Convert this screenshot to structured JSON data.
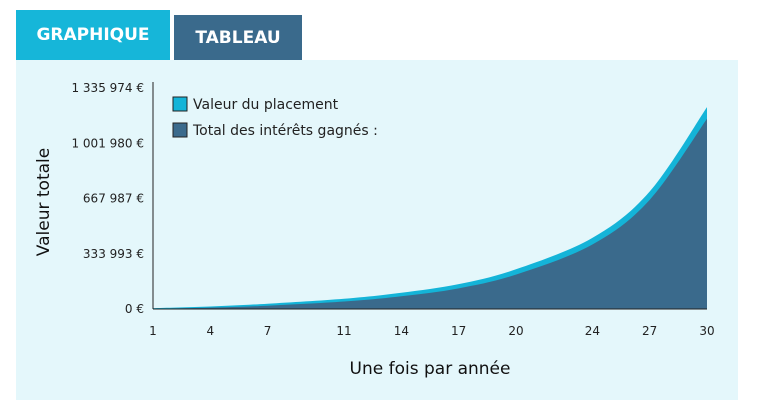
{
  "tabs": [
    {
      "label": "GRAPHIQUE",
      "active": true
    },
    {
      "label": "TABLEAU",
      "active": false
    }
  ],
  "colors": {
    "tab_active": "#16b6d9",
    "tab_inactive": "#3a6a8c",
    "panel_bg": "#e4f7fb",
    "series_value": "#14b4d8",
    "series_interest": "#3a6a8c"
  },
  "chart_data": {
    "type": "area",
    "title": "",
    "xlabel": "Une fois par année",
    "ylabel": "Valeur totale",
    "x_ticks": [
      "1",
      "4",
      "7",
      "11",
      "14",
      "17",
      "20",
      "24",
      "27",
      "30"
    ],
    "y_ticks": [
      "0 €",
      "333 993 €",
      "667 987 €",
      "1 001 980 €",
      "1 335 974 €"
    ],
    "y_tick_values": [
      0,
      333993,
      667987,
      1001980,
      1335974
    ],
    "xlim": [
      1,
      30
    ],
    "ylim": [
      0,
      1335974
    ],
    "legend_position": "top-left",
    "x": [
      1,
      4,
      7,
      11,
      14,
      17,
      20,
      24,
      27,
      30
    ],
    "series": [
      {
        "name": "Valeur du placement",
        "values": [
          5000,
          15000,
          32000,
          62000,
          98000,
          150000,
          240000,
          430000,
          710000,
          1220000
        ]
      },
      {
        "name": "Total des intérêts gagnés :",
        "values": [
          1000,
          8000,
          20000,
          45000,
          77000,
          125000,
          208000,
          390000,
          660000,
          1150000
        ]
      }
    ]
  }
}
